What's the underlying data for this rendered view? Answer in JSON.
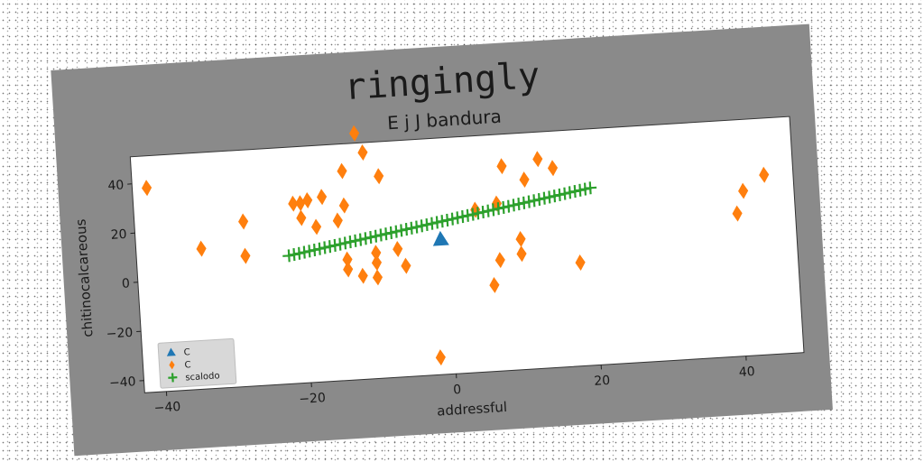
{
  "chart_data": {
    "type": "scatter",
    "title": "ringingly",
    "subtitle": "E j J bandura",
    "xlabel": "addressful",
    "ylabel": "chitinocalcareous",
    "xlim": [
      -43,
      48
    ],
    "ylim": [
      -45,
      51
    ],
    "xticks": [
      "−40",
      "−20",
      "0",
      "20",
      "40"
    ],
    "xtick_values": [
      -40,
      -20,
      0,
      20,
      40
    ],
    "yticks": [
      "−40",
      "−20",
      "0",
      "20",
      "40"
    ],
    "ytick_values": [
      -40,
      -20,
      0,
      20,
      40
    ],
    "grid": false,
    "legend_position": "lower-left",
    "series": [
      {
        "name": "C",
        "marker": "triangle",
        "color": "#1f77b4",
        "points": [
          [
            -1,
            10
          ]
        ]
      },
      {
        "name": "C",
        "marker": "diamond",
        "color": "#ff7f0e",
        "points": [
          [
            -41,
            38
          ],
          [
            -34,
            12
          ],
          [
            -28,
            8
          ],
          [
            -28,
            22
          ],
          [
            -21,
            28
          ],
          [
            -20,
            22
          ],
          [
            -20,
            28
          ],
          [
            -19,
            29
          ],
          [
            -18,
            18
          ],
          [
            -17,
            30
          ],
          [
            -15,
            20
          ],
          [
            -14,
            40
          ],
          [
            -14,
            26
          ],
          [
            -14,
            0
          ],
          [
            -14,
            4
          ],
          [
            -12,
            55
          ],
          [
            -12,
            -3
          ],
          [
            -11,
            47
          ],
          [
            -10,
            6
          ],
          [
            -10,
            2
          ],
          [
            -10,
            -4
          ],
          [
            -9,
            37
          ],
          [
            -7,
            7
          ],
          [
            -6,
            0
          ],
          [
            -2,
            -38
          ],
          [
            4,
            21
          ],
          [
            6,
            -10
          ],
          [
            7,
            23
          ],
          [
            7,
            0
          ],
          [
            8,
            38
          ],
          [
            10,
            8
          ],
          [
            10,
            2
          ],
          [
            11,
            32
          ],
          [
            13,
            40
          ],
          [
            15,
            36
          ],
          [
            18,
            -3
          ],
          [
            40,
            13
          ],
          [
            41,
            22
          ],
          [
            44,
            28
          ]
        ]
      },
      {
        "name": "scalodo",
        "marker": "plus",
        "color": "#2ca02c",
        "line": {
          "x_start": -22,
          "x_end": 20,
          "y_start": 7,
          "y_end": 27,
          "count": 60
        }
      }
    ]
  }
}
